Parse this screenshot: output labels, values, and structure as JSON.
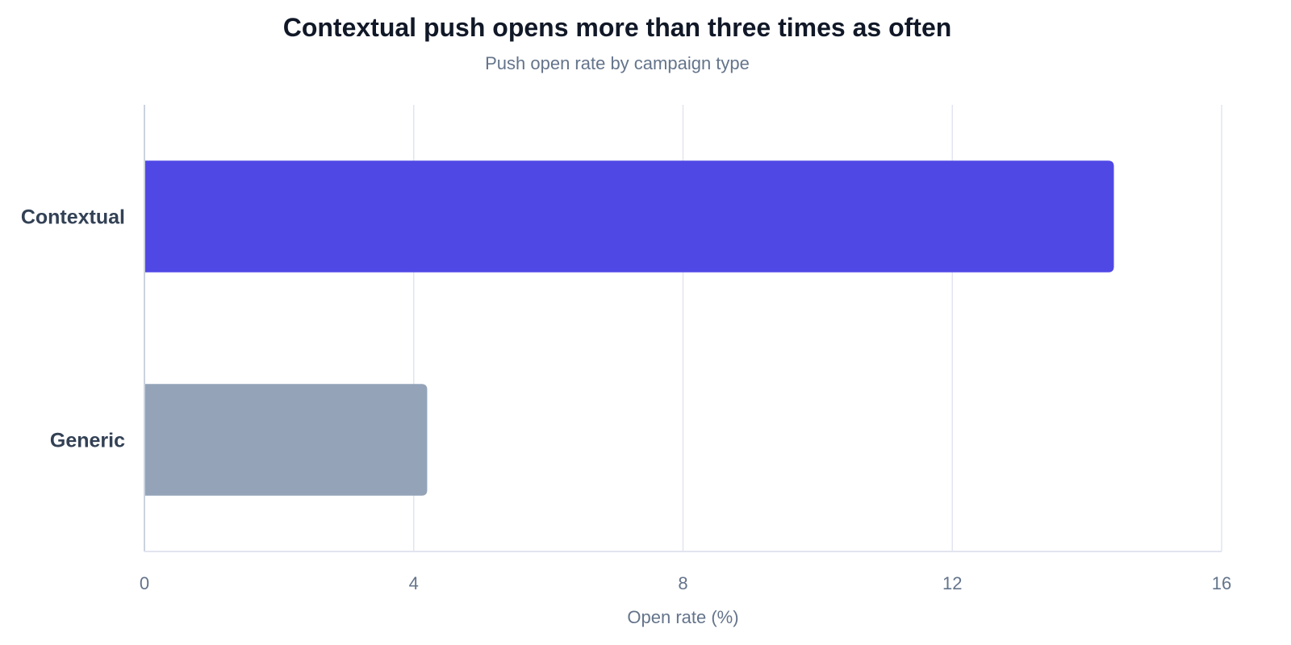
{
  "chart": {
    "title": "Contextual push opens more than three times as often",
    "subtitle": "Push open rate by campaign type"
  },
  "chart_data": {
    "type": "bar",
    "orientation": "horizontal",
    "title": "Contextual push opens more than three times as often",
    "subtitle": "Push open rate by campaign type",
    "categories": [
      "Contextual",
      "Generic"
    ],
    "values": [
      14.4,
      4.2
    ],
    "colors": [
      "#5048e5",
      "#94a3b8"
    ],
    "xlabel": "Open rate (%)",
    "ylabel": "",
    "xlim": [
      0,
      16
    ],
    "xticks": [
      0,
      4,
      8,
      12,
      16
    ],
    "grid": true,
    "legend": "none"
  }
}
